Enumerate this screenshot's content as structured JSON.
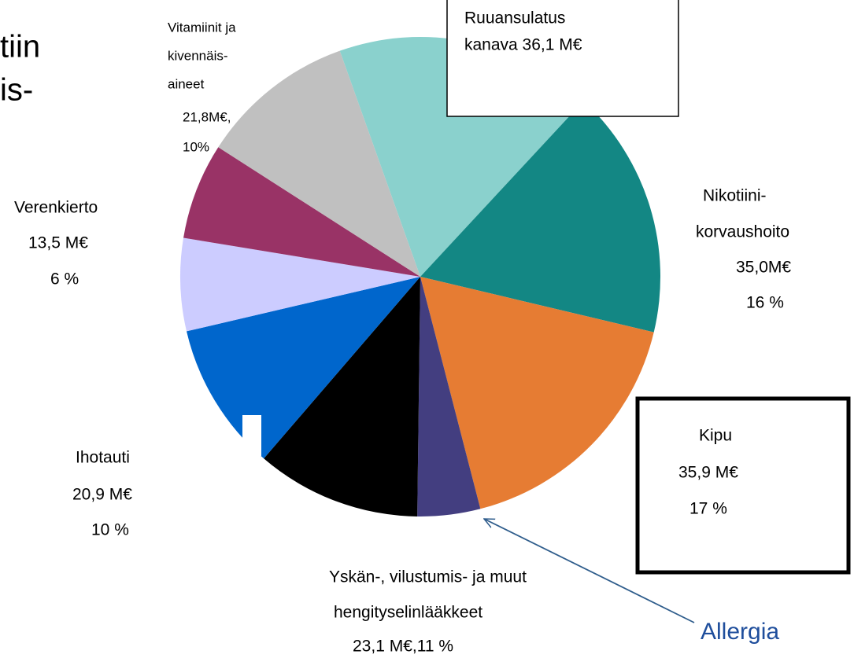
{
  "fragments": [
    "tiin",
    "is-"
  ],
  "chart_data": {
    "type": "pie",
    "values": [
      36.1,
      35.0,
      35.9,
      8.8,
      23.1,
      20.9,
      13,
      13.5,
      21.8
    ],
    "labels": [
      [
        "Ruuansulatus",
        "kanava 36,1 M€"
      ],
      [
        "Nikotiini-",
        "korvaushoito",
        "35,0M€",
        "16 %"
      ],
      [
        "Kipu",
        "35,9 M€",
        "17 %"
      ],
      [
        "Allergia"
      ],
      [
        "Yskän-, vilustumis- ja muut",
        "hengityselinlääkkeet",
        "23,1 M€,11 %"
      ],
      [
        "Ihotauti",
        "20,9 M€",
        "10 %"
      ],
      null,
      [
        "Verenkierto",
        "13,5 M€",
        "6 %"
      ],
      [
        "Vitamiinit ja",
        "kivennäis-",
        "aineet",
        "21,8M€,",
        "10%"
      ]
    ],
    "colors": [
      "#8ad1cd",
      "#138784",
      "#e67c33",
      "#433e80",
      "#000000",
      "#0066cc",
      "#ccccff",
      "#993366",
      "#c0c0c0"
    ]
  }
}
